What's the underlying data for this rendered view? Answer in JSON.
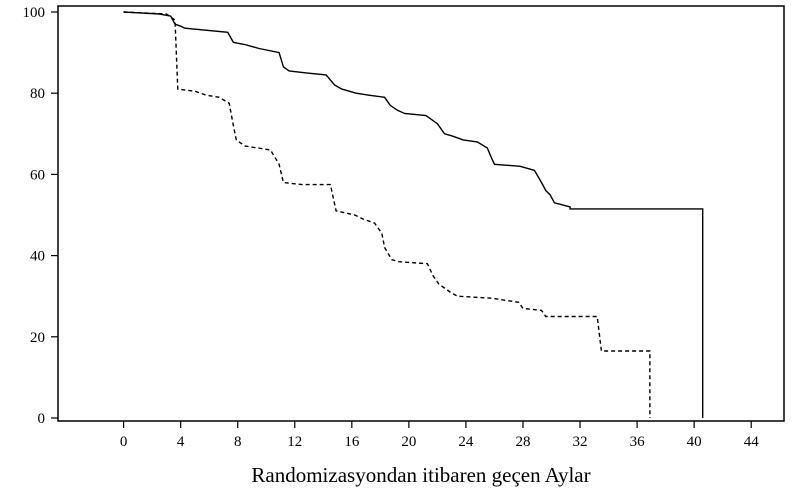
{
  "chart_data": {
    "type": "line",
    "title": "",
    "xlabel": "Randomizasyondan itibaren geçen Aylar",
    "ylabel": "",
    "xlim": [
      -4.6,
      46.3
    ],
    "ylim": [
      0,
      100
    ],
    "x_ticks": [
      0,
      4,
      8,
      12,
      16,
      20,
      24,
      28,
      32,
      36,
      40,
      44
    ],
    "x_tick_labels": [
      "0",
      "4",
      "8",
      "12",
      "16",
      "20",
      "24",
      "28",
      "32",
      "36",
      "40",
      "44"
    ],
    "y_ticks": [
      0,
      20,
      40,
      60,
      80,
      100
    ],
    "y_tick_labels": [
      "0",
      "20",
      "40",
      "60",
      "80",
      "100"
    ],
    "grid": false,
    "legend": "none",
    "series": [
      {
        "style": "solid",
        "color": "#000000",
        "points": [
          [
            0,
            100
          ],
          [
            2.5,
            99.5
          ],
          [
            3.3,
            99
          ],
          [
            3.6,
            97
          ],
          [
            4.0,
            96.5
          ],
          [
            4.3,
            96
          ],
          [
            7.3,
            95
          ],
          [
            7.7,
            92.5
          ],
          [
            8.5,
            92
          ],
          [
            9.5,
            91
          ],
          [
            10.9,
            90
          ],
          [
            11.2,
            86.5
          ],
          [
            11.6,
            85.5
          ],
          [
            12.8,
            85
          ],
          [
            14.2,
            84.5
          ],
          [
            14.8,
            82
          ],
          [
            15.3,
            81
          ],
          [
            16.3,
            80
          ],
          [
            17.2,
            79.5
          ],
          [
            18.3,
            79
          ],
          [
            18.7,
            77
          ],
          [
            19.2,
            75.8
          ],
          [
            19.7,
            75
          ],
          [
            21.2,
            74.5
          ],
          [
            22.0,
            72.5
          ],
          [
            22.5,
            70
          ],
          [
            23.0,
            69.5
          ],
          [
            23.8,
            68.5
          ],
          [
            24.8,
            68
          ],
          [
            25.5,
            66.5
          ],
          [
            25.8,
            64
          ],
          [
            26.0,
            62.5
          ],
          [
            27.8,
            62
          ],
          [
            28.8,
            61
          ],
          [
            29.3,
            58
          ],
          [
            29.6,
            56
          ],
          [
            29.9,
            55
          ],
          [
            30.2,
            53
          ],
          [
            31.3,
            52
          ],
          [
            31.3,
            51.5
          ],
          [
            40.6,
            51.5
          ],
          [
            40.6,
            0
          ]
        ]
      },
      {
        "style": "dashed",
        "color": "#000000",
        "points": [
          [
            0,
            100
          ],
          [
            3.0,
            99.5
          ],
          [
            3.6,
            98
          ],
          [
            3.8,
            81
          ],
          [
            5.0,
            80.5
          ],
          [
            5.8,
            79.5
          ],
          [
            6.7,
            79
          ],
          [
            7.4,
            77.5
          ],
          [
            7.7,
            72
          ],
          [
            7.9,
            68.5
          ],
          [
            8.5,
            67
          ],
          [
            10.3,
            66
          ],
          [
            10.9,
            62.5
          ],
          [
            11.2,
            58
          ],
          [
            12.5,
            57.5
          ],
          [
            14.5,
            57.5
          ],
          [
            14.9,
            51
          ],
          [
            16.2,
            50
          ],
          [
            16.8,
            49
          ],
          [
            17.6,
            48
          ],
          [
            18.1,
            45.5
          ],
          [
            18.3,
            42
          ],
          [
            18.8,
            39
          ],
          [
            19.3,
            38.5
          ],
          [
            21.3,
            38
          ],
          [
            21.7,
            35
          ],
          [
            22.1,
            33
          ],
          [
            22.9,
            31
          ],
          [
            23.4,
            30
          ],
          [
            25.8,
            29.5
          ],
          [
            27.7,
            28.5
          ],
          [
            28.0,
            27
          ],
          [
            29.3,
            26.5
          ],
          [
            29.6,
            25
          ],
          [
            33.2,
            25
          ],
          [
            33.5,
            16.5
          ],
          [
            36.9,
            16.5
          ],
          [
            36.9,
            0
          ]
        ]
      }
    ]
  }
}
